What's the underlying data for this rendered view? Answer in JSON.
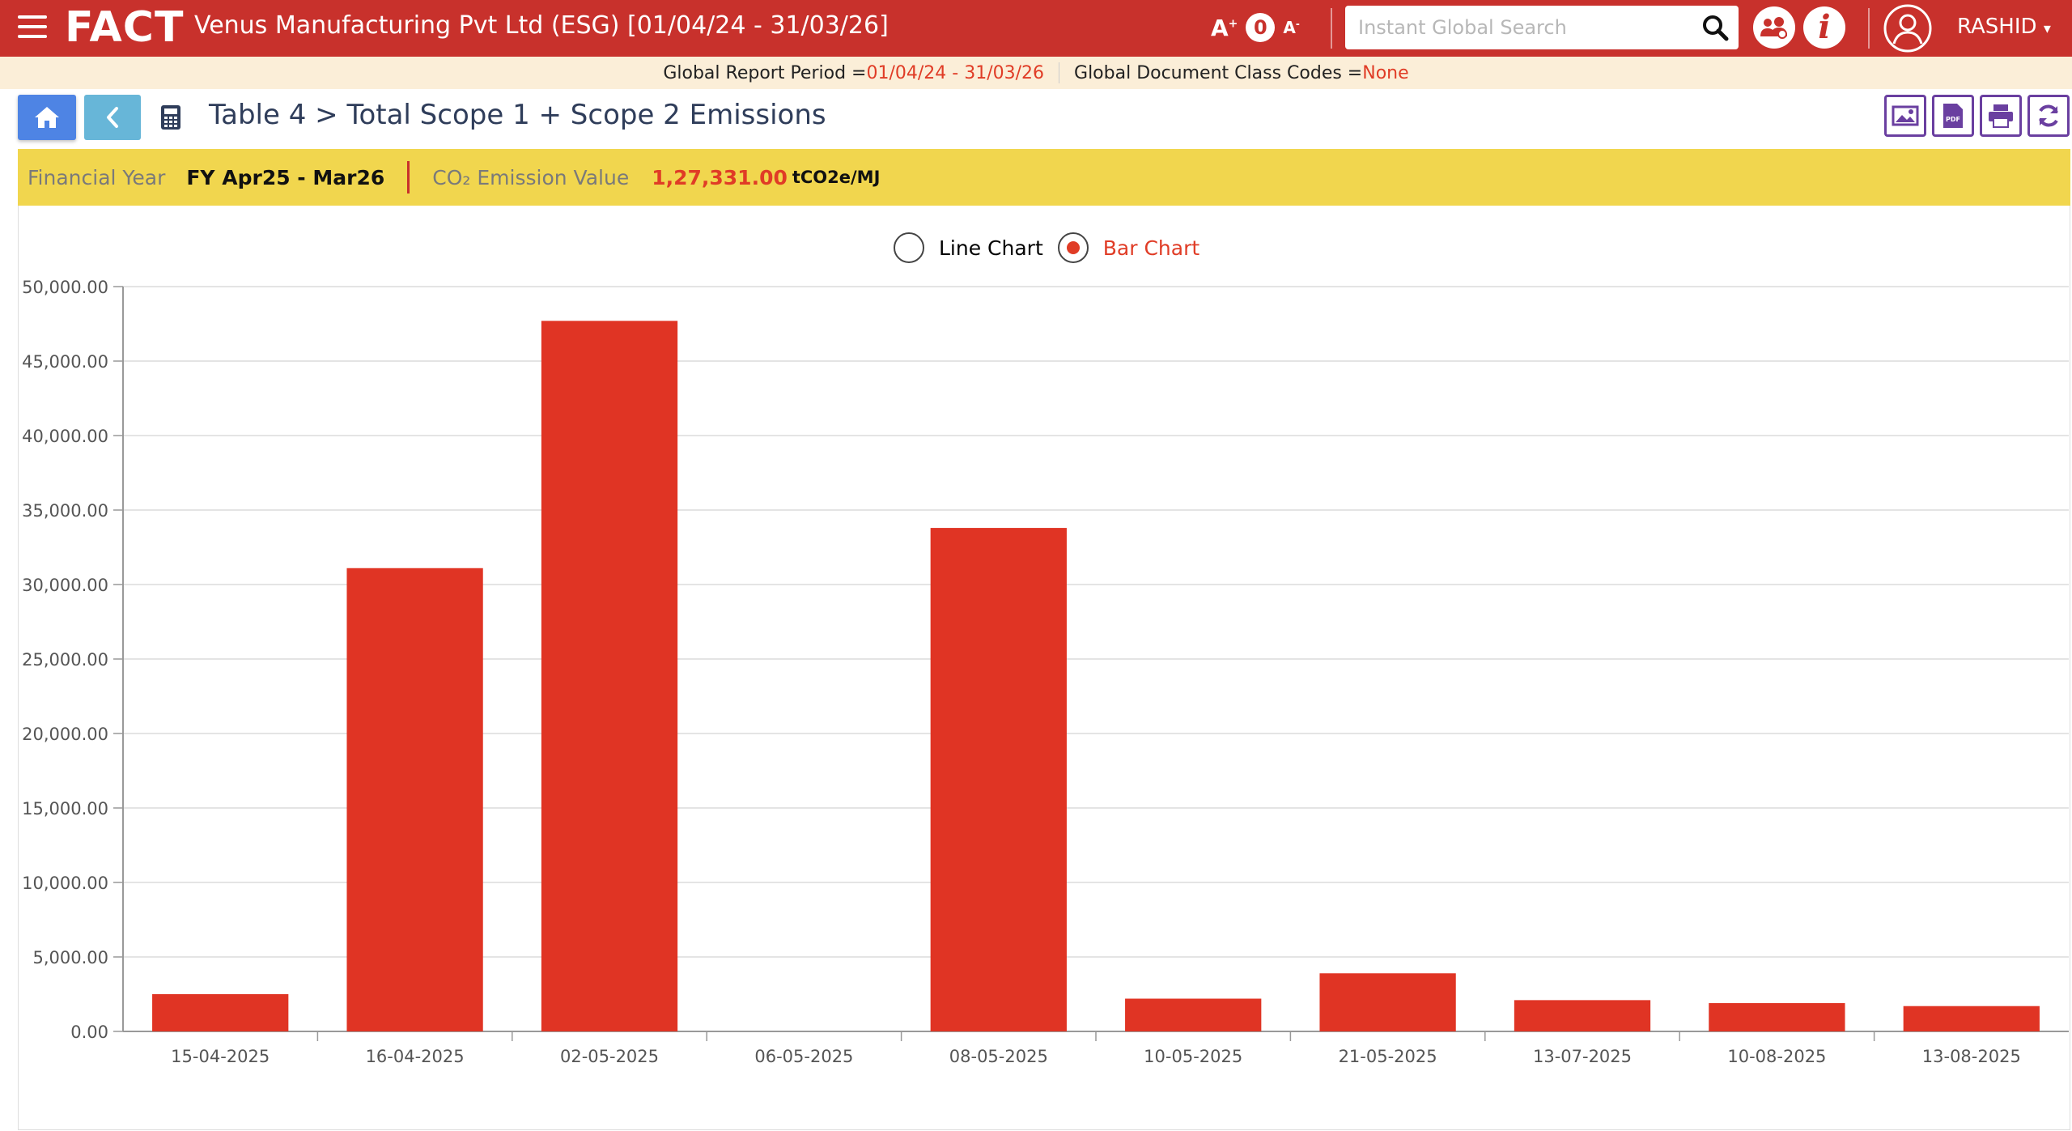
{
  "header": {
    "logo": "FACT",
    "company": "Venus Manufacturing Pvt Ltd (ESG) [01/04/24 - 31/03/26]",
    "font_increase": "A",
    "font_reset": "0",
    "font_decrease": "A",
    "search_placeholder": "Instant Global Search",
    "user": "RASHID"
  },
  "period_bar": {
    "report_period_label": "Global Report Period = ",
    "report_period_value": "01/04/24 - 31/03/26",
    "class_codes_label": "Global Document Class Codes = ",
    "class_codes_value": "None"
  },
  "page": {
    "title": "Table 4 > Total Scope 1 + Scope 2 Emissions"
  },
  "info": {
    "fy_label": "Financial Year",
    "fy_value": "FY Apr25 - Mar26",
    "emission_label": "CO₂ Emission Value",
    "emission_value": "1,27,331.00",
    "emission_unit": "tCO2e/MJ"
  },
  "chart_toggle": {
    "line_label": "Line Chart",
    "bar_label": "Bar Chart",
    "selected": "bar"
  },
  "colors": {
    "header": "#c8312c",
    "bar": "#e03424",
    "accent": "#e03c26",
    "tool_border": "#6a3fa0"
  },
  "chart_data": {
    "type": "bar",
    "categories": [
      "15-04-2025",
      "16-04-2025",
      "02-05-2025",
      "06-05-2025",
      "08-05-2025",
      "10-05-2025",
      "21-05-2025",
      "13-07-2025",
      "10-08-2025",
      "13-08-2025"
    ],
    "values": [
      2500,
      31100,
      47700,
      0,
      33800,
      2200,
      3900,
      2100,
      1900,
      1700
    ],
    "ylim": [
      0,
      50000
    ],
    "yticks": [
      "0.00",
      "5,000.00",
      "10,000.00",
      "15,000.00",
      "20,000.00",
      "25,000.00",
      "30,000.00",
      "35,000.00",
      "40,000.00",
      "45,000.00",
      "50,000.00"
    ],
    "grid": true,
    "legend": "none"
  }
}
